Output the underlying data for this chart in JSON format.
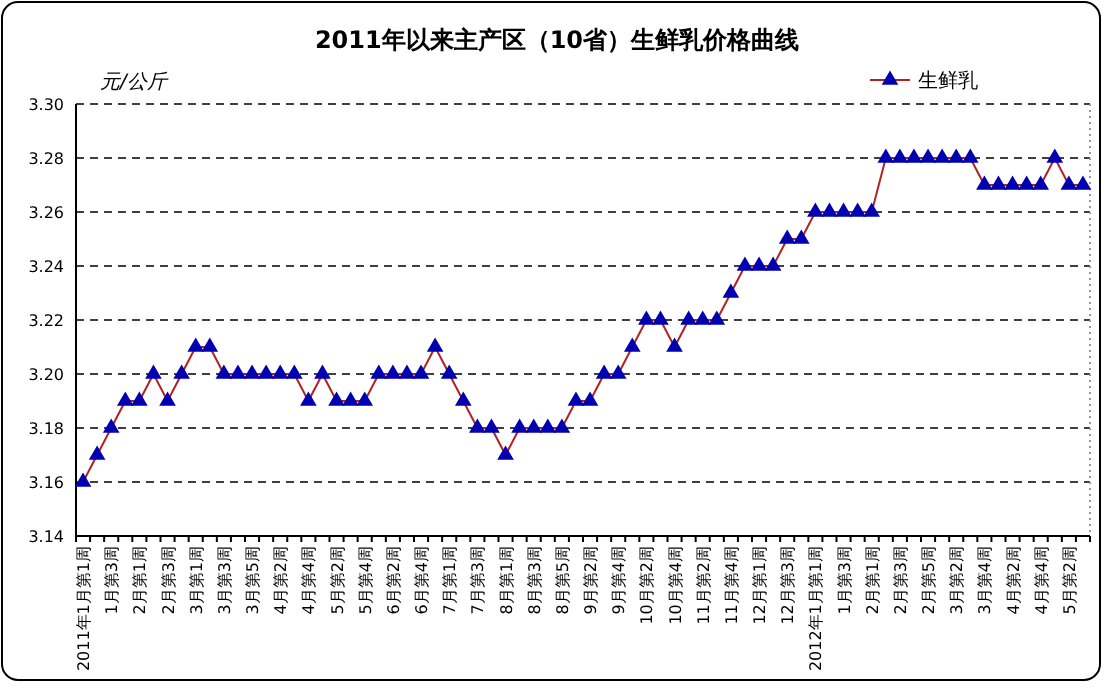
{
  "chart_data": {
    "type": "line",
    "title": "2011年以来主产区（10省）生鲜乳价格曲线",
    "ylabel": "元/公斤",
    "categories": [
      "2011年1月第1周",
      null,
      "1月第3周",
      null,
      "2月第1周",
      null,
      "2月第3周",
      null,
      "3月第1周",
      null,
      "3月第3周",
      null,
      "3月第5周",
      null,
      "4月第2周",
      null,
      "4月第4周",
      null,
      "5月第2周",
      null,
      "5月第4周",
      null,
      "6月第2周",
      null,
      "6月第4周",
      null,
      "7月第1周",
      null,
      "7月第3周",
      null,
      "8月第1周",
      null,
      "8月第3周",
      null,
      "8月第5周",
      null,
      "9月第2周",
      null,
      "9月第4周",
      null,
      "10月第2周",
      null,
      "10月第4周",
      null,
      "11月第2周",
      null,
      "11月第4周",
      null,
      "12月第1周",
      null,
      "12月第3周",
      null,
      "2012年1月第1周",
      null,
      "1月第3周",
      null,
      "2月第1周",
      null,
      "2月第3周",
      null,
      "2月第5周",
      null,
      "3月第2周",
      null,
      "3月第4周",
      null,
      "4月第2周",
      null,
      "4月第4周",
      null,
      "5月第2周",
      null
    ],
    "series": [
      {
        "name": "生鲜乳",
        "color": "#0000b0",
        "values": [
          3.16,
          3.17,
          3.18,
          3.19,
          3.19,
          3.2,
          3.19,
          3.2,
          3.21,
          3.21,
          3.2,
          3.2,
          3.2,
          3.2,
          3.2,
          3.2,
          3.19,
          3.2,
          3.19,
          3.19,
          3.19,
          3.2,
          3.2,
          3.2,
          3.2,
          3.21,
          3.2,
          3.19,
          3.18,
          3.18,
          3.17,
          3.18,
          3.18,
          3.18,
          3.18,
          3.19,
          3.19,
          3.2,
          3.2,
          3.21,
          3.22,
          3.22,
          3.21,
          3.22,
          3.22,
          3.22,
          3.23,
          3.24,
          3.24,
          3.24,
          3.25,
          3.25,
          3.26,
          3.26,
          3.26,
          3.26,
          3.26,
          3.28,
          3.28,
          3.28,
          3.28,
          3.28,
          3.28,
          3.28,
          3.27,
          3.27,
          3.27,
          3.27,
          3.27,
          3.28,
          3.27,
          3.27
        ]
      }
    ],
    "ylim": [
      3.14,
      3.3
    ],
    "yticks": [
      3.14,
      3.16,
      3.18,
      {
        "value": 3.2,
        "label": "3.20"
      },
      3.22,
      3.24,
      3.26,
      3.28,
      {
        "value": 3.3,
        "label": "3.30"
      }
    ],
    "grid": "y",
    "legend": "top right",
    "marker": "triangle",
    "line_style": "solid"
  }
}
